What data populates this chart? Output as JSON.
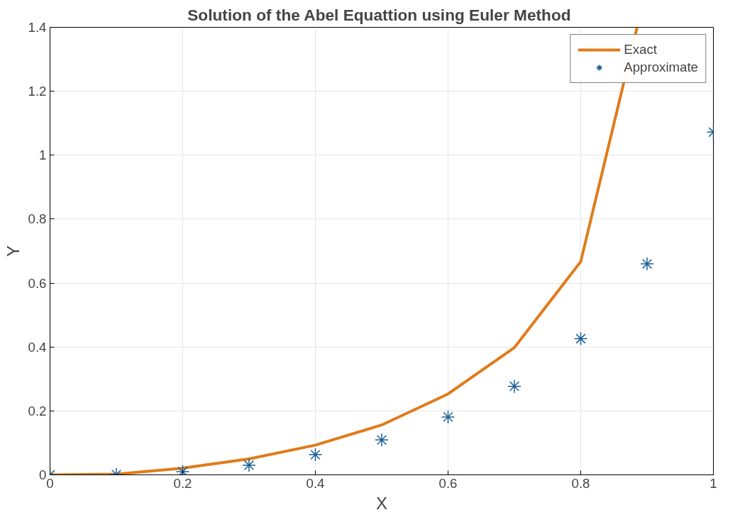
{
  "chart_data": {
    "type": "line",
    "title": "Solution of the Abel Equattion  using Euler Method",
    "xlabel": "X",
    "ylabel": "Y",
    "xlim": [
      0,
      1
    ],
    "ylim": [
      0,
      1.4
    ],
    "xticks": [
      0,
      0.2,
      0.4,
      0.6,
      0.8,
      1
    ],
    "yticks": [
      0,
      0.2,
      0.4,
      0.6,
      0.8,
      1,
      1.2,
      1.4
    ],
    "grid": true,
    "legend": "top right",
    "series": [
      {
        "name": "Exact",
        "color": "#e07b1a",
        "line_style": "solid",
        "x": [
          0,
          0.1,
          0.2,
          0.3,
          0.4,
          0.5,
          0.6,
          0.7,
          0.8,
          0.885
        ],
        "values": [
          0,
          0.002,
          0.021,
          0.05,
          0.093,
          0.156,
          0.253,
          0.398,
          0.667,
          1.4
        ]
      },
      {
        "name": "Approximate",
        "type": "scatter",
        "color": "#1a5f96",
        "marker": "cross",
        "x": [
          0,
          0.1,
          0.2,
          0.3,
          0.4,
          0.5,
          0.6,
          0.7,
          0.8,
          0.9,
          1
        ],
        "values": [
          0,
          0.001,
          0.01,
          0.03,
          0.063,
          0.109,
          0.181,
          0.277,
          0.426,
          0.66,
          1.072
        ]
      }
    ]
  }
}
